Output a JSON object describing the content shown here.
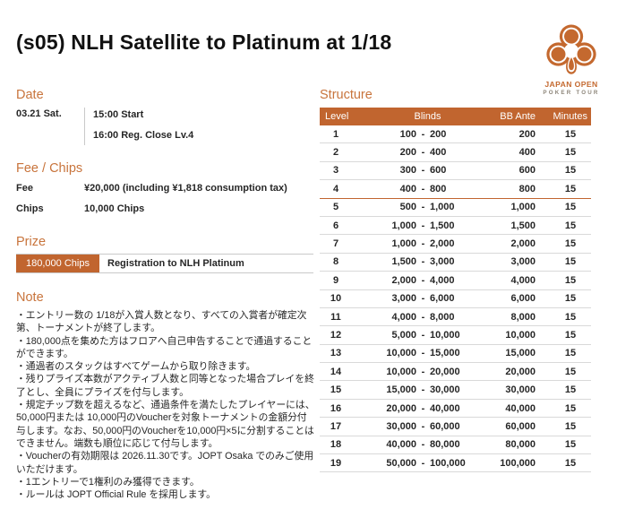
{
  "title": "(s05) NLH Satellite to Platinum at 1/18",
  "logo": {
    "line1": "JAPAN OPEN",
    "line2": "POKER TOUR"
  },
  "date": {
    "heading": "Date",
    "day": "03.21 Sat.",
    "times": [
      "15:00 Start",
      "16:00 Reg. Close Lv.4"
    ]
  },
  "fee_chips": {
    "heading": "Fee / Chips",
    "rows": [
      {
        "label": "Fee",
        "value": "¥20,000 (including ¥1,818 consumption tax)"
      },
      {
        "label": "Chips",
        "value": "10,000 Chips"
      }
    ]
  },
  "prize": {
    "heading": "Prize",
    "amount": "180,000 Chips",
    "description": "Registration to NLH Platinum"
  },
  "note": {
    "heading": "Note",
    "items": [
      "・エントリー数の 1/18が入賞人数となり、すべての入賞者が確定次第、トーナメントが終了します。",
      "・180,000点を集めた方はフロアへ自己申告することで通過することができます。",
      "・通過者のスタックはすべてゲームから取り除きます。",
      "・残りプライズ本数がアクティブ人数と同等となった場合プレイを終了とし、全員にプライズを付与します。",
      "・規定チップ数を超えるなど、通過条件を満たしたプレイヤーには、50,000円または 10,000円のVoucherを対象トーナメントの金額分付与します。なお、50,000円のVoucherを10,000円×5に分割することはできません。端数も順位に応じて付与します。",
      "・Voucherの有効期限は 2026.11.30です。JOPT Osaka でのみご使用いただけます。",
      "・1エントリーで1権利のみ獲得できます。",
      "・ルールは JOPT Official Rule を採用します。"
    ]
  },
  "structure": {
    "heading": "Structure",
    "columns": [
      "Level",
      "Blinds",
      "BB Ante",
      "Minutes"
    ],
    "blinds_separator": "-",
    "break_after_level": "4",
    "levels": [
      {
        "level": "1",
        "sb": "100",
        "bb": "200",
        "ante": "200",
        "minutes": "15"
      },
      {
        "level": "2",
        "sb": "200",
        "bb": "400",
        "ante": "400",
        "minutes": "15"
      },
      {
        "level": "3",
        "sb": "300",
        "bb": "600",
        "ante": "600",
        "minutes": "15"
      },
      {
        "level": "4",
        "sb": "400",
        "bb": "800",
        "ante": "800",
        "minutes": "15"
      },
      {
        "level": "5",
        "sb": "500",
        "bb": "1,000",
        "ante": "1,000",
        "minutes": "15"
      },
      {
        "level": "6",
        "sb": "1,000",
        "bb": "1,500",
        "ante": "1,500",
        "minutes": "15"
      },
      {
        "level": "7",
        "sb": "1,000",
        "bb": "2,000",
        "ante": "2,000",
        "minutes": "15"
      },
      {
        "level": "8",
        "sb": "1,500",
        "bb": "3,000",
        "ante": "3,000",
        "minutes": "15"
      },
      {
        "level": "9",
        "sb": "2,000",
        "bb": "4,000",
        "ante": "4,000",
        "minutes": "15"
      },
      {
        "level": "10",
        "sb": "3,000",
        "bb": "6,000",
        "ante": "6,000",
        "minutes": "15"
      },
      {
        "level": "11",
        "sb": "4,000",
        "bb": "8,000",
        "ante": "8,000",
        "minutes": "15"
      },
      {
        "level": "12",
        "sb": "5,000",
        "bb": "10,000",
        "ante": "10,000",
        "minutes": "15"
      },
      {
        "level": "13",
        "sb": "10,000",
        "bb": "15,000",
        "ante": "15,000",
        "minutes": "15"
      },
      {
        "level": "14",
        "sb": "10,000",
        "bb": "20,000",
        "ante": "20,000",
        "minutes": "15"
      },
      {
        "level": "15",
        "sb": "15,000",
        "bb": "30,000",
        "ante": "30,000",
        "minutes": "15"
      },
      {
        "level": "16",
        "sb": "20,000",
        "bb": "40,000",
        "ante": "40,000",
        "minutes": "15"
      },
      {
        "level": "17",
        "sb": "30,000",
        "bb": "60,000",
        "ante": "60,000",
        "minutes": "15"
      },
      {
        "level": "18",
        "sb": "40,000",
        "bb": "80,000",
        "ante": "80,000",
        "minutes": "15"
      },
      {
        "level": "19",
        "sb": "50,000",
        "bb": "100,000",
        "ante": "100,000",
        "minutes": "15"
      }
    ]
  },
  "colors": {
    "accent": "#C1652F",
    "heading": "#C8743C",
    "logo_orange": "#C4692F",
    "row_line": "#D9D9D9",
    "text": "#262626"
  }
}
